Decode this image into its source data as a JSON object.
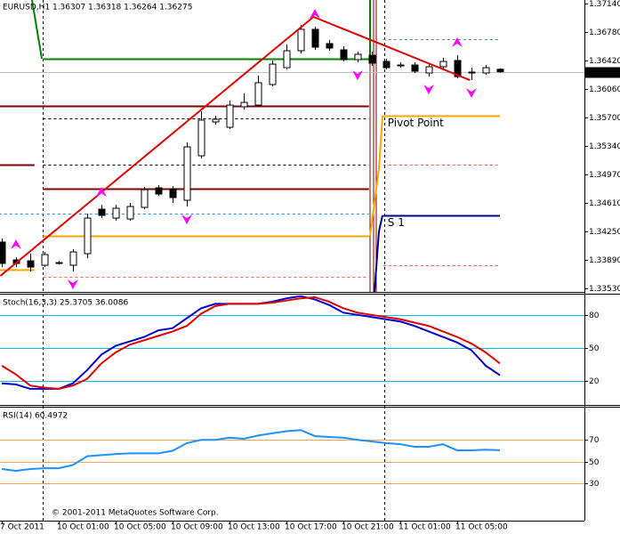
{
  "chart_data": [
    {
      "type": "candlestick",
      "title": "EURUSD,H1 1.36307 1.36318 1.36264 1.36275",
      "categories": [
        "7 Oct 2011",
        null,
        null,
        null,
        "10 Oct 01:00",
        null,
        null,
        null,
        "10 Oct 05:00",
        null,
        null,
        null,
        "10 Oct 09:00",
        null,
        null,
        null,
        "10 Oct 13:00",
        null,
        null,
        null,
        "10 Oct 17:00",
        null,
        null,
        null,
        "10 Oct 21:00",
        null,
        null,
        null,
        "11 Oct 01:00",
        null,
        null,
        null,
        "11 Oct 05:00",
        null,
        null,
        null
      ],
      "open": [
        1.34116,
        1.3389,
        1.33878,
        1.33822,
        1.33856,
        1.33822,
        1.33969,
        1.34533,
        1.3442,
        1.34409,
        1.34556,
        1.34804,
        1.34792,
        1.34646,
        1.3521,
        1.35639,
        1.35571,
        1.35831,
        1.35853,
        1.36113,
        1.36327,
        1.36542,
        1.36813,
        1.36632,
        1.36553,
        1.36429,
        1.36485,
        1.36406,
        1.36361,
        1.36361,
        1.3626,
        1.36339,
        1.36418,
        1.36271,
        1.3626,
        1.36307
      ],
      "high": [
        1.34161,
        1.33924,
        1.33969,
        1.33991,
        1.33878,
        1.34025,
        1.34477,
        1.34589,
        1.34589,
        1.34612,
        1.34815,
        1.34838,
        1.34826,
        1.35379,
        1.35774,
        1.35718,
        1.3591,
        1.36,
        1.36226,
        1.36418,
        1.36621,
        1.36869,
        1.36846,
        1.36677,
        1.36598,
        1.3653,
        1.3653,
        1.3644,
        1.36395,
        1.36395,
        1.36372,
        1.36452,
        1.36485,
        1.36327,
        1.36361,
        1.36318
      ],
      "low": [
        1.33799,
        1.33799,
        1.33743,
        1.33799,
        1.33833,
        1.33743,
        1.33912,
        1.3442,
        1.34386,
        1.34386,
        1.34533,
        1.34702,
        1.34612,
        1.34567,
        1.35176,
        1.35605,
        1.35549,
        1.35797,
        1.35831,
        1.3609,
        1.36305,
        1.36508,
        1.36553,
        1.36542,
        1.36406,
        1.36395,
        1.3635,
        1.36305,
        1.36327,
        1.3626,
        1.36214,
        1.36305,
        1.36192,
        1.36169,
        1.36237,
        1.36264
      ],
      "close": [
        1.33845,
        1.33845,
        1.33799,
        1.33958,
        1.33856,
        1.33991,
        1.3442,
        1.34454,
        1.34545,
        1.34567,
        1.34781,
        1.34725,
        1.3468,
        1.35323,
        1.35662,
        1.35673,
        1.35853,
        1.35887,
        1.36136,
        1.36372,
        1.36542,
        1.36813,
        1.36587,
        1.36576,
        1.36429,
        1.36497,
        1.36384,
        1.36327,
        1.36361,
        1.36282,
        1.36339,
        1.36406,
        1.36214,
        1.36271,
        1.36327,
        1.36275
      ],
      "up_color": "#ffffff",
      "down_color": "#000000",
      "ylim": [
        1.33484,
        1.37185
      ],
      "yticks": [
        {
          "value": 1.3714,
          "label": "1.37140"
        },
        {
          "value": 1.3678,
          "label": "1.36780"
        },
        {
          "value": 1.3642,
          "label": "1.36420"
        },
        {
          "value": 1.3606,
          "label": "1.36060"
        },
        {
          "value": 1.357,
          "label": "1.35700"
        },
        {
          "value": 1.3534,
          "label": "1.35340"
        },
        {
          "value": 1.3497,
          "label": "1.34970"
        },
        {
          "value": 1.3461,
          "label": "1.34610"
        },
        {
          "value": 1.3425,
          "label": "1.34250"
        },
        {
          "value": 1.3389,
          "label": "1.33890"
        },
        {
          "value": 1.3353,
          "label": "1.33530"
        }
      ],
      "levels": [
        {
          "value": 1.3644,
          "color": "#008000",
          "from": 2.9,
          "to": 25.8
        },
        {
          "value": 1.35842,
          "color": "#800000",
          "from": -0.2,
          "to": 25.8
        },
        {
          "value": 1.35098,
          "color": "#800000",
          "from": -0.2,
          "to": 2.3
        },
        {
          "value": 1.34792,
          "color": "#800000",
          "from": 2.9,
          "to": 25.8
        },
        {
          "value": 1.33766,
          "color": "#ffa500",
          "from": -0.2,
          "to": 2.3
        },
        {
          "value": 1.34194,
          "color": "#ffa500",
          "from": 2.9,
          "to": 25.8
        },
        {
          "value": 1.35684,
          "color": "#000000",
          "from": 2.9,
          "to": 25.8,
          "dash": true
        },
        {
          "value": 1.35098,
          "color": "#000000",
          "from": 2.9,
          "to": 25.8,
          "dash": true
        },
        {
          "value": 1.34477,
          "color": "#1e90ff",
          "from": -0.2,
          "to": 25.8,
          "dash": true
        },
        {
          "value": 1.33676,
          "color": "#ff6347",
          "from": 2.9,
          "to": 25.8,
          "dash": true
        },
        {
          "value": 1.36688,
          "color": "#4682b4",
          "from": 26.8,
          "to": 35,
          "dash": true
        },
        {
          "value": 1.35098,
          "color": "#ff6347",
          "from": 26.8,
          "to": 35,
          "dash": true
        },
        {
          "value": 1.33822,
          "color": "#ff6347",
          "from": 26.8,
          "to": 35,
          "dash": true
        },
        {
          "value": 1.35718,
          "label": "Pivot Point",
          "label_color": "#b22222",
          "color": "#ffa500",
          "from": 26.8,
          "to": 35
        },
        {
          "value": 1.34454,
          "label": "S 1",
          "label_color": "#c03040",
          "color": "#000080",
          "from": 26.8,
          "to": 35
        }
      ],
      "trendline": {
        "x": [
          -0.1,
          21.9,
          32.9
        ],
        "values": [
          1.33687,
          1.36971,
          1.36169
        ],
        "color": "#e00000"
      },
      "fractals_up": [
        1,
        7,
        22,
        32
      ],
      "fractals_down": [
        5,
        13,
        25,
        30,
        33
      ],
      "fractal_color": "#ff00ff"
    },
    {
      "type": "line",
      "title": "Stoch(16,3,3) 25.3705 36.0086",
      "ylim": [
        -1.6,
        98.4
      ],
      "yticks": [
        20,
        50,
        80
      ],
      "grid": true,
      "grid_color": "#00bfff",
      "series": [
        {
          "color": "#0000cd",
          "values": [
            18,
            17,
            13,
            13,
            13,
            18,
            30,
            44,
            52,
            56,
            60,
            66,
            68,
            77,
            86,
            90,
            90,
            90,
            90,
            92,
            95,
            97,
            94,
            89,
            82,
            80,
            78,
            76,
            74,
            70,
            65,
            60,
            55,
            48,
            34,
            25.3705
          ]
        },
        {
          "color": "#e00000",
          "values": [
            34,
            26,
            16,
            14,
            13,
            16,
            22,
            36,
            46,
            53,
            57,
            61,
            65,
            70,
            81,
            88,
            90,
            90,
            90,
            91,
            93,
            95,
            96,
            92,
            86,
            82,
            80,
            78,
            76,
            73,
            70,
            65,
            60,
            54,
            46,
            36.0086
          ]
        }
      ]
    },
    {
      "type": "line",
      "title": "RSI(14) 60.4972",
      "ylim": [
        -4.1,
        99.6
      ],
      "yticks": [
        30,
        50,
        70
      ],
      "grid": true,
      "grid_color": "#f4a460",
      "annotation": "© 2001-2011 MetaQuotes Software Corp.",
      "series": [
        {
          "color": "#1e90ff",
          "values": [
            43.3,
            41.6,
            43.3,
            44,
            44,
            47,
            55,
            56,
            57,
            57.6,
            57.6,
            57.6,
            60,
            67,
            70,
            70,
            72,
            71,
            74,
            76,
            78,
            79,
            73.5,
            72.7,
            72,
            70,
            68.6,
            67,
            66,
            63.7,
            63.7,
            66,
            60.4,
            60.4,
            61,
            60.4972
          ]
        }
      ]
    }
  ]
}
